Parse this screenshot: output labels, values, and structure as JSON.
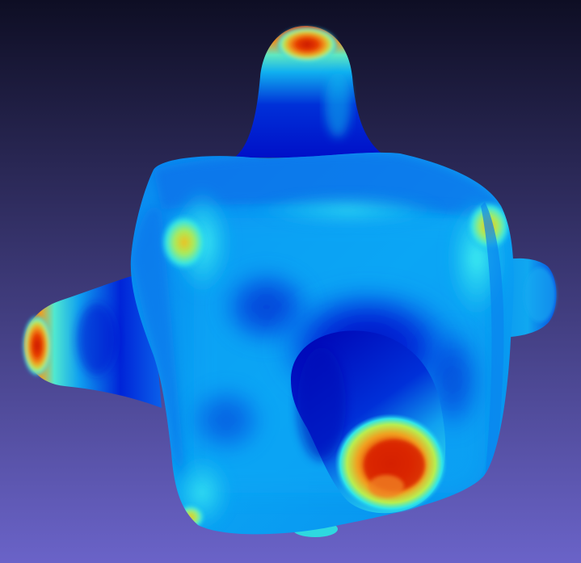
{
  "viewer": {
    "background": {
      "top_color": "#0e0e24",
      "bottom_color": "#6a63c8"
    },
    "model": {
      "description_icon": "3d-mesh-icon",
      "colormap": [
        "#0000c8",
        "#0a46e6",
        "#0aa0f0",
        "#20e8f0",
        "#a8ec5a",
        "#f0e028",
        "#f08c14",
        "#e02800"
      ],
      "base_color": "#0a9cf0",
      "cold_color": "#0018d8",
      "hot_color": "#e82800"
    }
  }
}
